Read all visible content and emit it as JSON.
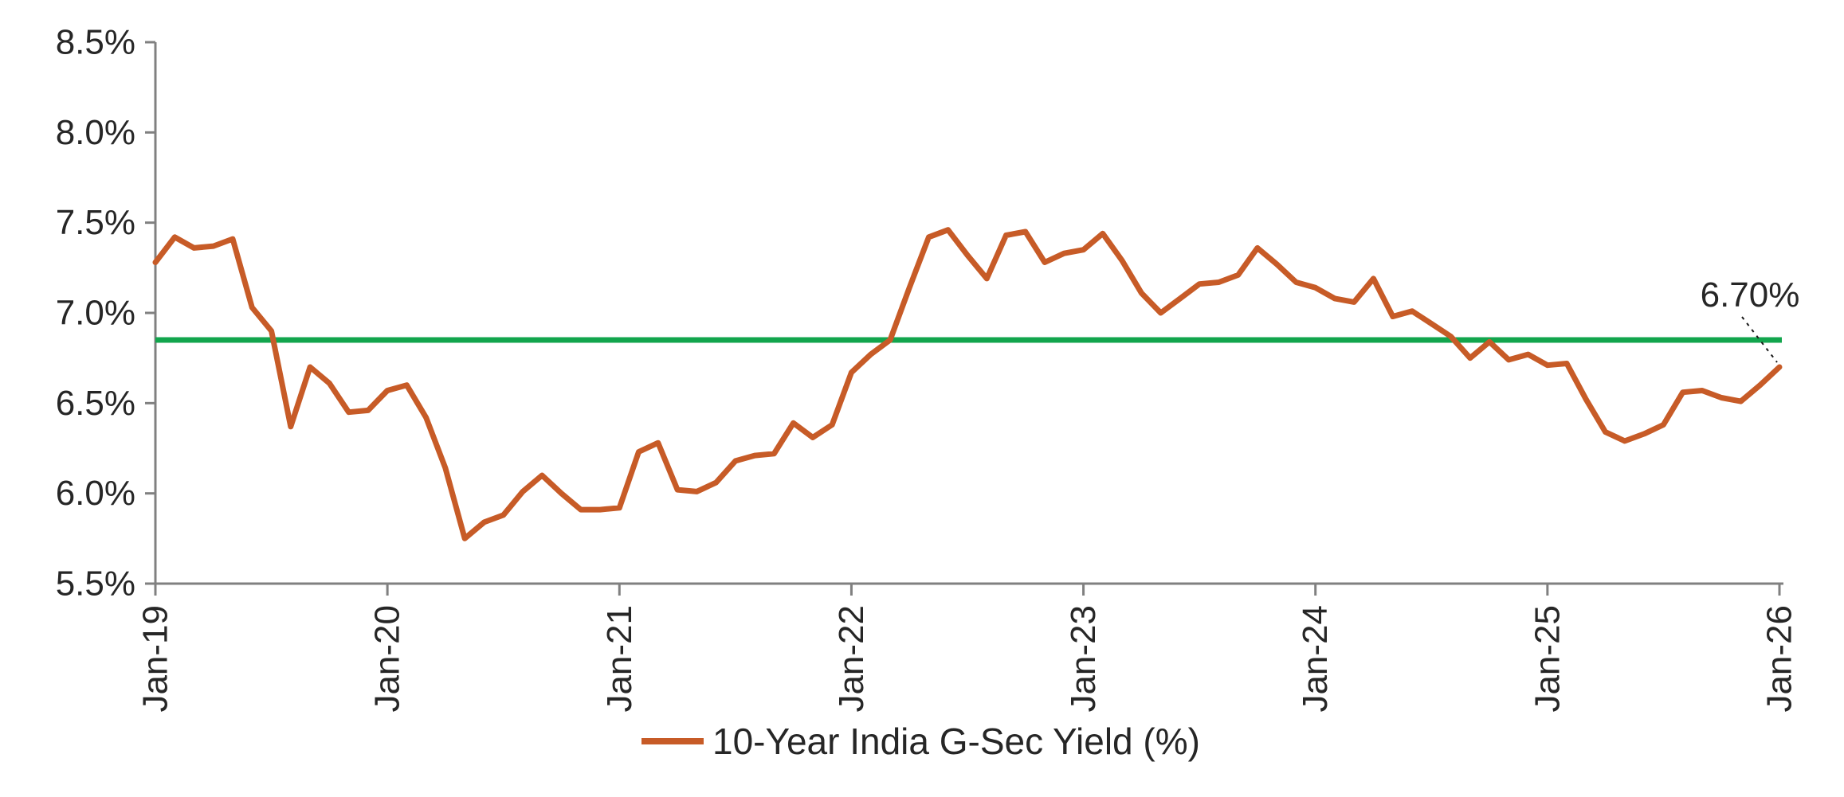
{
  "chart_data": {
    "type": "line",
    "title": "",
    "y_axis": {
      "tick_labels": [
        "8.5%",
        "8.0%",
        "7.5%",
        "7.0%",
        "6.5%",
        "6.0%",
        "5.5%"
      ],
      "min": 5.5,
      "max": 8.5,
      "step": 0.5
    },
    "x_axis": {
      "tick_labels": [
        "Jan-19",
        "Jan-20",
        "Jan-21",
        "Jan-22",
        "Jan-23",
        "Jan-24",
        "Jan-25",
        "Jan-26"
      ],
      "months_per_tick": 12
    },
    "series": [
      {
        "name": "10-Year India G-Sec Yield (%)",
        "color": "#C75B27",
        "frequency": "monthly",
        "start_month": "Jan-19",
        "end_month": "Jan-26",
        "values": [
          7.28,
          7.42,
          7.36,
          7.37,
          7.41,
          7.03,
          6.9,
          6.37,
          6.7,
          6.61,
          6.45,
          6.46,
          6.57,
          6.6,
          6.42,
          6.14,
          5.75,
          5.84,
          5.88,
          6.01,
          6.1,
          6.0,
          5.91,
          5.91,
          5.92,
          6.23,
          6.28,
          6.02,
          6.01,
          6.06,
          6.18,
          6.21,
          6.22,
          6.39,
          6.31,
          6.38,
          6.67,
          6.77,
          6.85,
          7.14,
          7.42,
          7.46,
          7.32,
          7.19,
          7.43,
          7.45,
          7.28,
          7.33,
          7.35,
          7.44,
          7.29,
          7.11,
          7.0,
          7.08,
          7.16,
          7.17,
          7.21,
          7.36,
          7.27,
          7.17,
          7.14,
          7.08,
          7.06,
          7.19,
          6.98,
          7.01,
          6.94,
          6.87,
          6.75,
          6.84,
          6.74,
          6.77,
          6.71,
          6.72,
          6.52,
          6.34,
          6.29,
          6.33,
          6.38,
          6.56,
          6.57,
          6.53,
          6.51,
          6.6,
          6.7
        ]
      }
    ],
    "reference_line": {
      "value": 6.85,
      "color": "#12A54D"
    },
    "annotation": {
      "label": "6.70%",
      "value": 6.7,
      "at": "Jan-26"
    },
    "legend": {
      "position": "bottom-center",
      "entries": [
        "10-Year India G-Sec Yield (%)"
      ]
    },
    "grid": "off",
    "axis_color": "#808080",
    "text_color": "#262626",
    "leader_line_color": "#1a1a1a"
  }
}
